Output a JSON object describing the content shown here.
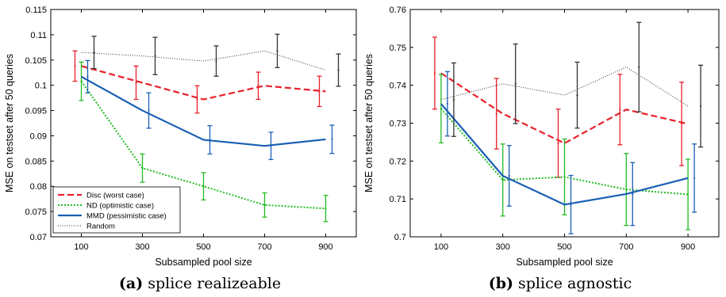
{
  "chart_data": [
    {
      "type": "line",
      "caption_letter": "(a)",
      "caption_text": "splice realizeable",
      "xlabel": "Subsampled pool size",
      "ylabel": "MSE on testset after 50 queries",
      "x": [
        100,
        300,
        500,
        700,
        900
      ],
      "xlim": [
        0,
        1000
      ],
      "ylim": [
        0.07,
        0.115
      ],
      "x_ticks": [
        "100",
        "300",
        "500",
        "700",
        "900"
      ],
      "y_ticks": [
        {
          "v": 0.07,
          "label": "0.07"
        },
        {
          "v": 0.075,
          "label": "0.075"
        },
        {
          "v": 0.08,
          "label": "0.08"
        },
        {
          "v": 0.085,
          "label": "0.085"
        },
        {
          "v": 0.09,
          "label": "0.09"
        },
        {
          "v": 0.095,
          "label": "0.095"
        },
        {
          "v": 0.1,
          "label": "0.1"
        },
        {
          "v": 0.105,
          "label": "0.105"
        },
        {
          "v": 0.11,
          "label": "0.11"
        },
        {
          "v": 0.115,
          "label": "0.115"
        }
      ],
      "grid": false,
      "legend_position": "bottom-left",
      "series": [
        {
          "name": "Disc (worst case)",
          "color": "#e8202a",
          "style": "dashed",
          "x_offset": -8,
          "values": [
            0.1038,
            0.1005,
            0.0972,
            0.0999,
            0.0988
          ],
          "err": [
            0.003,
            0.0033,
            0.0027,
            0.0027,
            0.003
          ]
        },
        {
          "name": "ND (optimistic case)",
          "color": "#22bb22",
          "style": "dotted",
          "x_offset": 0,
          "values": [
            0.1008,
            0.0836,
            0.08,
            0.0763,
            0.0756
          ],
          "err": [
            0.0038,
            0.0028,
            0.0027,
            0.0024,
            0.0026
          ]
        },
        {
          "name": "MMD (pessimistic case)",
          "color": "#1a5fb4",
          "style": "solid",
          "x_offset": 8,
          "values": [
            0.1017,
            0.095,
            0.0892,
            0.088,
            0.0893
          ],
          "err": [
            0.0032,
            0.0035,
            0.0028,
            0.0027,
            0.0028
          ]
        },
        {
          "name": "Random",
          "color": "#333333",
          "style": "finedot",
          "x_offset": 16,
          "values": [
            0.1065,
            0.1058,
            0.1048,
            0.1068,
            0.103
          ],
          "err": [
            0.0032,
            0.0037,
            0.003,
            0.0033,
            0.0032
          ]
        }
      ]
    },
    {
      "type": "line",
      "caption_letter": "(b)",
      "caption_text": "splice agnostic",
      "xlabel": "Subsampled pool size",
      "ylabel": "MSE on testset after 50 queries",
      "x": [
        100,
        300,
        500,
        700,
        900
      ],
      "xlim": [
        0,
        1000
      ],
      "ylim": [
        0.7,
        0.76
      ],
      "x_ticks": [
        "100",
        "300",
        "500",
        "700",
        "900"
      ],
      "y_ticks": [
        {
          "v": 0.7,
          "label": "0.7"
        },
        {
          "v": 0.71,
          "label": "0.71"
        },
        {
          "v": 0.72,
          "label": "0.72"
        },
        {
          "v": 0.73,
          "label": "0.73"
        },
        {
          "v": 0.74,
          "label": "0.74"
        },
        {
          "v": 0.75,
          "label": "0.75"
        },
        {
          "v": 0.76,
          "label": "0.76"
        }
      ],
      "grid": false,
      "series": [
        {
          "name": "Disc (worst case)",
          "color": "#e8202a",
          "style": "dashed",
          "x_offset": -8,
          "values": [
            0.7432,
            0.7325,
            0.7247,
            0.7336,
            0.7298
          ],
          "err": [
            0.0095,
            0.0093,
            0.009,
            0.0093,
            0.011
          ]
        },
        {
          "name": "ND (optimistic case)",
          "color": "#22bb22",
          "style": "dotted",
          "x_offset": 0,
          "values": [
            0.7338,
            0.715,
            0.7158,
            0.7125,
            0.7112
          ],
          "err": [
            0.009,
            0.0095,
            0.01,
            0.0095,
            0.0093
          ]
        },
        {
          "name": "MMD (pessimistic case)",
          "color": "#1a5fb4",
          "style": "solid",
          "x_offset": 8,
          "values": [
            0.7351,
            0.7161,
            0.7085,
            0.7113,
            0.7155
          ],
          "err": [
            0.0085,
            0.008,
            0.0077,
            0.0083,
            0.009
          ]
        },
        {
          "name": "Random",
          "color": "#333333",
          "style": "finedot",
          "x_offset": 16,
          "values": [
            0.7362,
            0.7404,
            0.7374,
            0.7448,
            0.7345
          ],
          "err": [
            0.0097,
            0.0105,
            0.0087,
            0.0118,
            0.0108
          ]
        }
      ]
    }
  ]
}
